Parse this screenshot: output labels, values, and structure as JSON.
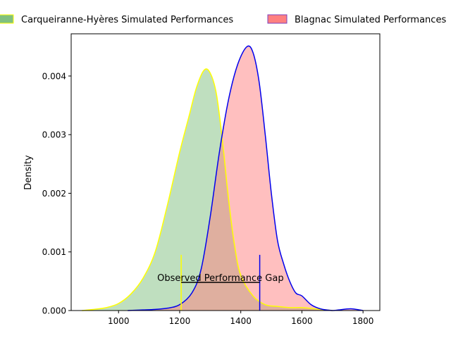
{
  "chart_data": {
    "type": "area",
    "title": "",
    "xlabel": "",
    "ylabel": "Density",
    "xlim": [
      845,
      1855
    ],
    "ylim": [
      0,
      0.00472
    ],
    "grid": false,
    "legend_position": "top",
    "x_ticks": [
      1000,
      1200,
      1400,
      1600,
      1800
    ],
    "y_ticks": [
      0.0,
      0.001,
      0.002,
      0.003,
      0.004
    ],
    "x_tick_labels": [
      "1000",
      "1200",
      "1400",
      "1600",
      "1800"
    ],
    "y_tick_labels": [
      "0.000",
      "0.001",
      "0.002",
      "0.003",
      "0.004"
    ],
    "series": [
      {
        "name": "Carqueiranne-Hyères Simulated Performances",
        "fill_color": "#80c080",
        "fill_opacity": 0.5,
        "line_color": "#ffff00",
        "points": [
          [
            880,
            0
          ],
          [
            920,
            2e-05
          ],
          [
            960,
            5e-05
          ],
          [
            1000,
            0.00012
          ],
          [
            1040,
            0.00028
          ],
          [
            1080,
            0.00055
          ],
          [
            1120,
            0.001
          ],
          [
            1160,
            0.0018
          ],
          [
            1200,
            0.0027
          ],
          [
            1230,
            0.0033
          ],
          [
            1255,
            0.0038
          ],
          [
            1280,
            0.0041
          ],
          [
            1300,
            0.00405
          ],
          [
            1320,
            0.0037
          ],
          [
            1340,
            0.0029
          ],
          [
            1360,
            0.0019
          ],
          [
            1380,
            0.0011
          ],
          [
            1400,
            0.0006
          ],
          [
            1440,
            0.00025
          ],
          [
            1480,
            0.0001
          ],
          [
            1520,
            7e-05
          ],
          [
            1560,
            5e-05
          ],
          [
            1600,
            5e-05
          ],
          [
            1640,
            3e-05
          ],
          [
            1680,
            1e-05
          ],
          [
            1700,
            0
          ]
        ]
      },
      {
        "name": "Blagnac Simulated Performances",
        "fill_color": "#ff8080",
        "fill_opacity": 0.5,
        "line_color": "#0000ee",
        "points": [
          [
            1030,
            0
          ],
          [
            1080,
            1e-05
          ],
          [
            1120,
            2e-05
          ],
          [
            1160,
            4e-05
          ],
          [
            1200,
            0.0001
          ],
          [
            1240,
            0.0003
          ],
          [
            1270,
            0.0007
          ],
          [
            1300,
            0.0016
          ],
          [
            1330,
            0.0027
          ],
          [
            1360,
            0.0036
          ],
          [
            1390,
            0.0042
          ],
          [
            1420,
            0.0045
          ],
          [
            1440,
            0.0044
          ],
          [
            1460,
            0.0039
          ],
          [
            1480,
            0.003
          ],
          [
            1500,
            0.002
          ],
          [
            1520,
            0.0012
          ],
          [
            1540,
            0.0008
          ],
          [
            1560,
            0.0005
          ],
          [
            1580,
            0.0003
          ],
          [
            1600,
            0.00025
          ],
          [
            1630,
            0.0001
          ],
          [
            1660,
            3e-05
          ],
          [
            1700,
            0
          ],
          [
            1720,
            1e-05
          ],
          [
            1760,
            3e-05
          ],
          [
            1800,
            0
          ]
        ]
      }
    ],
    "annotation": {
      "text": "Observed Performance Gap",
      "x_start": 1205,
      "x_end": 1462,
      "y_bracket": 0.00048,
      "y_marker": 0.00095,
      "start_color": "#ffff00",
      "end_color": "#0000ee"
    }
  }
}
